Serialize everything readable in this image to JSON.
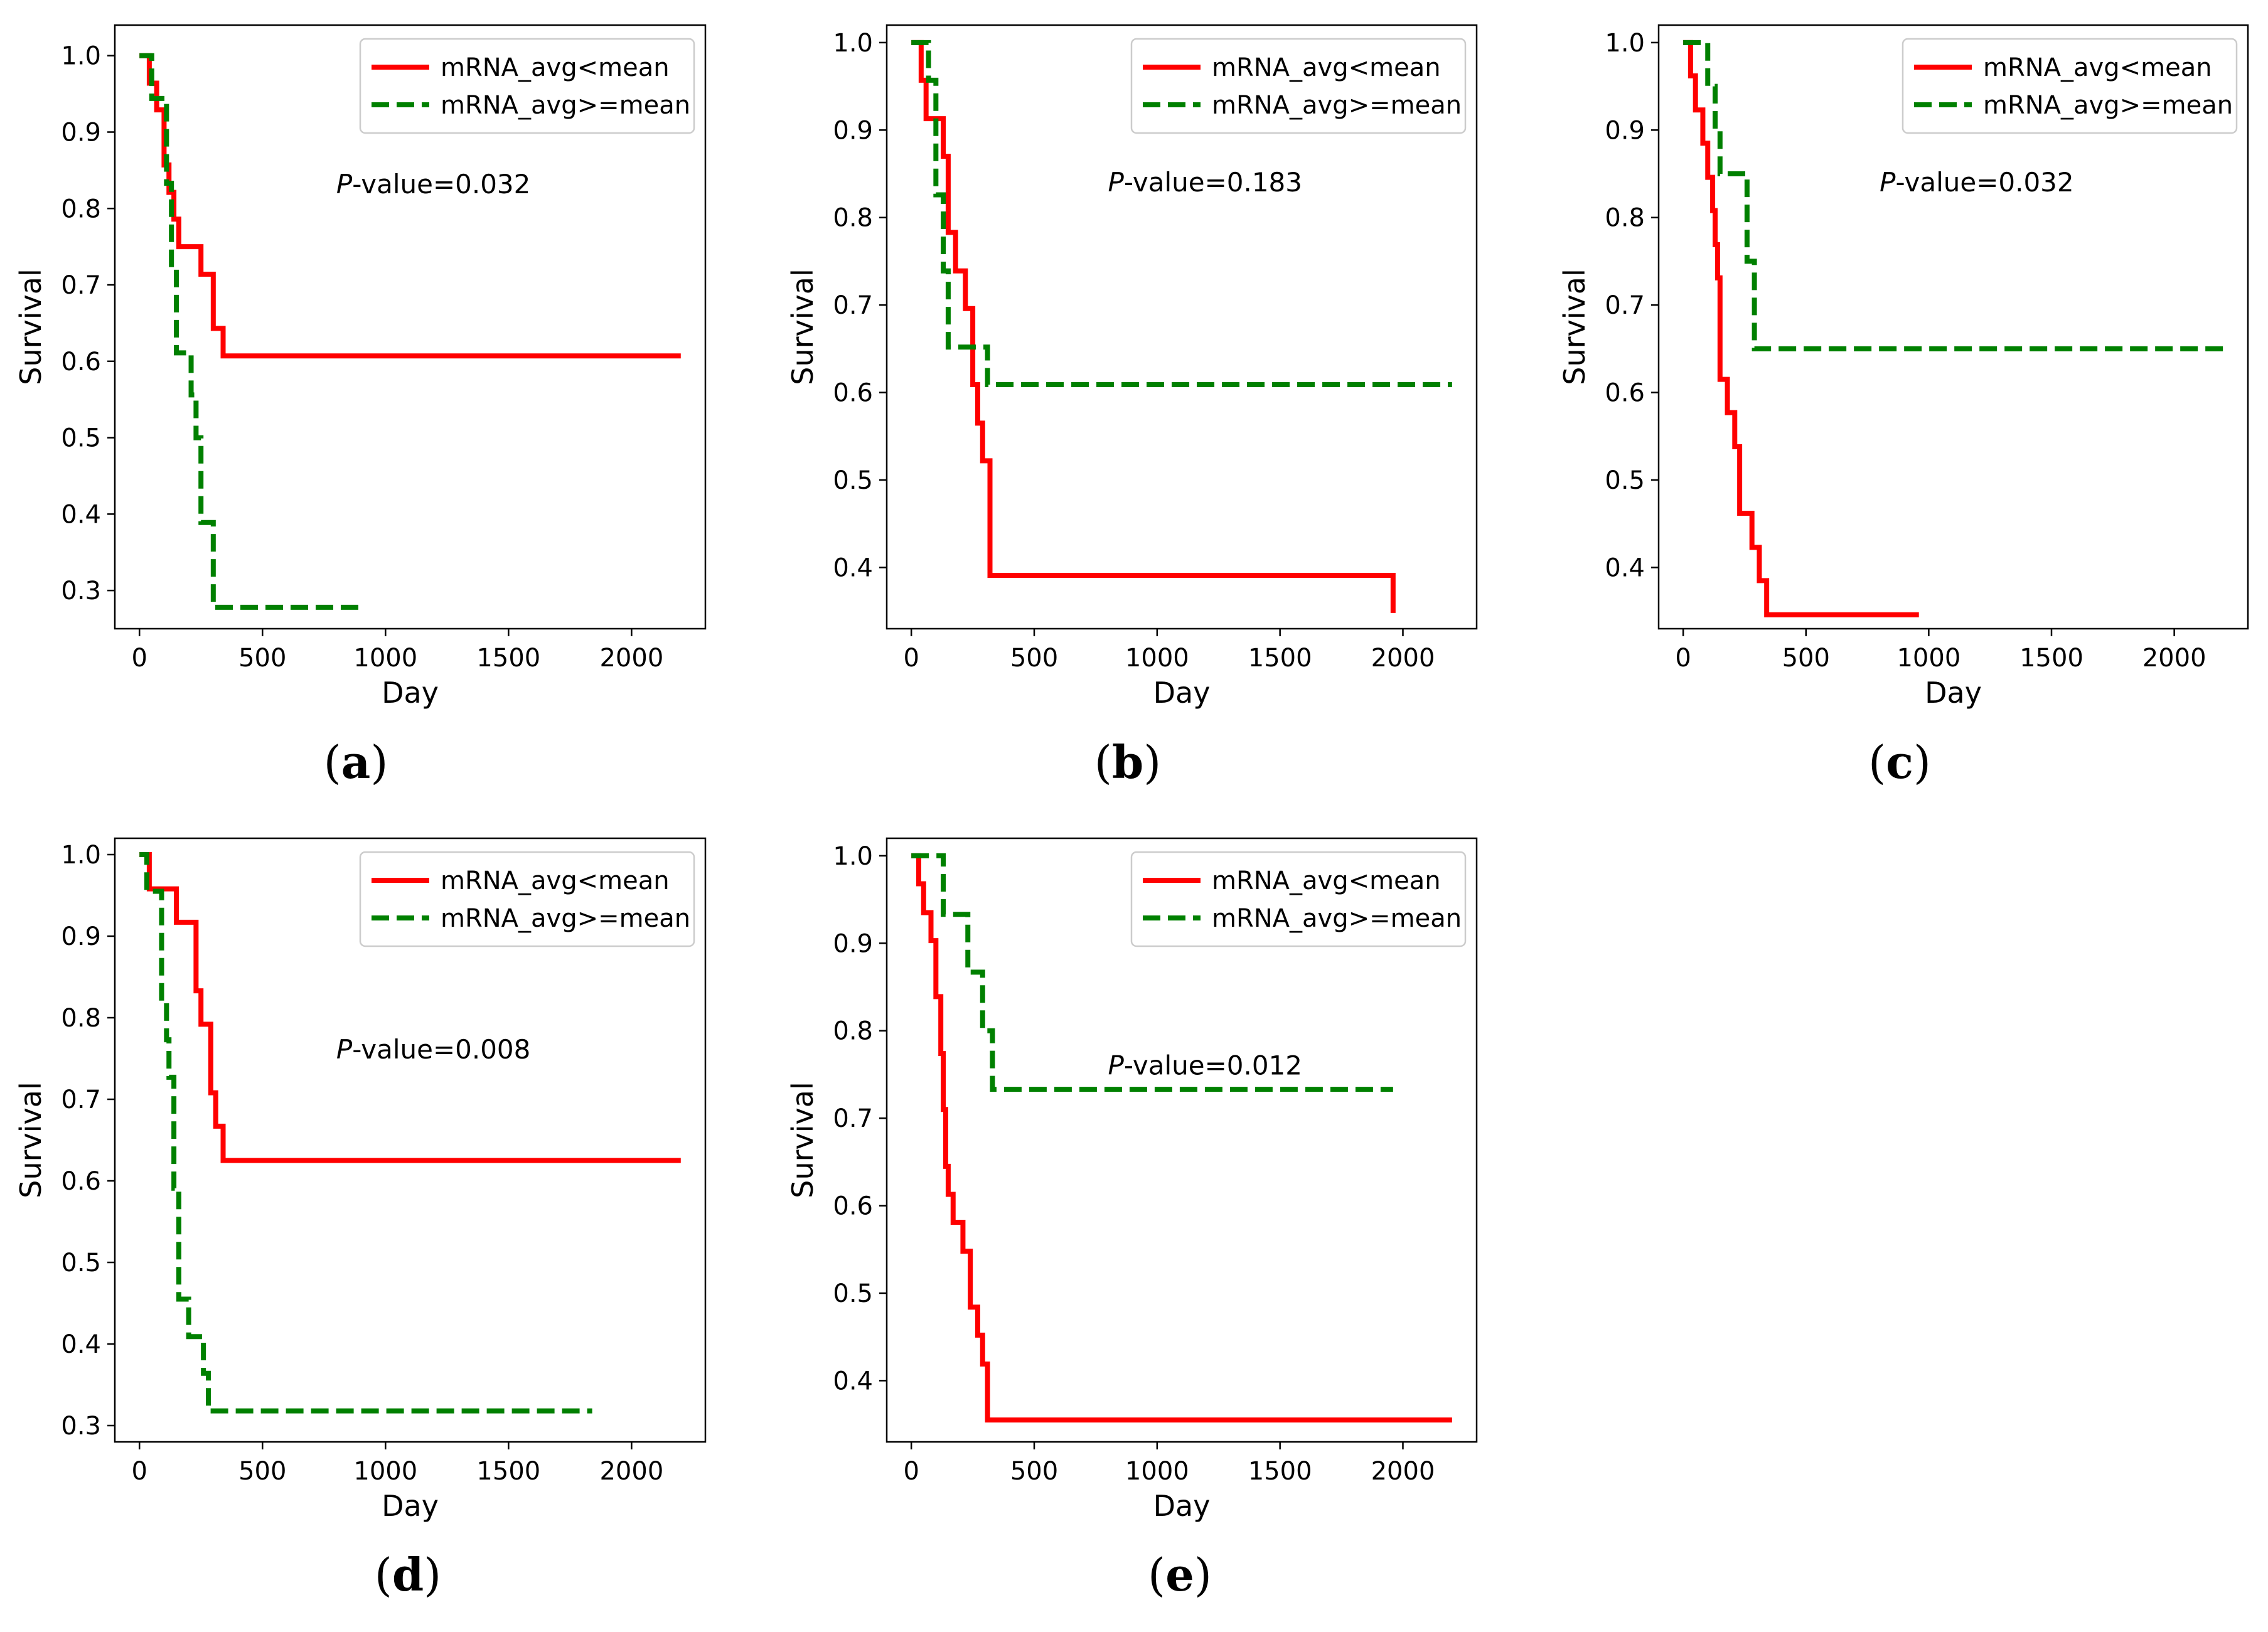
{
  "figure": {
    "colors": {
      "low": "#ff0000",
      "high": "#008000"
    },
    "legend": {
      "low": "mRNA_avg<mean",
      "high": "mRNA_avg>=mean"
    },
    "pvalue_prefix_italic": "P",
    "pvalue_prefix_rest": "-value="
  },
  "chart_data": [
    {
      "type": "line",
      "label": "(a)",
      "label_letter": "a",
      "xlabel": "Day",
      "ylabel": "Survival",
      "xlim": [
        -100,
        2300
      ],
      "ylim": [
        0.25,
        1.04
      ],
      "xticks": [
        0,
        500,
        1000,
        1500,
        2000
      ],
      "xtick_labels": [
        "0",
        "500",
        "1000",
        "1500",
        "2000"
      ],
      "yticks": [
        0.3,
        0.4,
        0.5,
        0.6,
        0.7,
        0.8,
        0.9,
        1.0
      ],
      "ytick_labels": [
        "0.3",
        "0.4",
        "0.5",
        "0.6",
        "0.7",
        "0.8",
        "0.9",
        "1.0"
      ],
      "legend_position": "top-right",
      "p_value": "0.032",
      "p_anchor": [
        800,
        0.82
      ],
      "series": [
        {
          "name": "mRNA_avg<mean",
          "style": "solid",
          "color": "#ff0000",
          "x": [
            0,
            40,
            70,
            100,
            120,
            140,
            160,
            250,
            300,
            340,
            2200
          ],
          "y": [
            1.0,
            0.964,
            0.929,
            0.857,
            0.821,
            0.786,
            0.75,
            0.714,
            0.643,
            0.607,
            0.607
          ]
        },
        {
          "name": "mRNA_avg>=mean",
          "style": "dashed",
          "color": "#008000",
          "x": [
            0,
            50,
            80,
            110,
            130,
            150,
            180,
            210,
            230,
            250,
            280,
            300,
            920
          ],
          "y": [
            1.0,
            0.944,
            0.944,
            0.833,
            0.722,
            0.611,
            0.611,
            0.556,
            0.5,
            0.389,
            0.389,
            0.278,
            0.278
          ]
        }
      ]
    },
    {
      "type": "line",
      "label": "(b)",
      "label_letter": "b",
      "xlabel": "Day",
      "ylabel": "Survival",
      "xlim": [
        -100,
        2300
      ],
      "ylim": [
        0.33,
        1.02
      ],
      "xticks": [
        0,
        500,
        1000,
        1500,
        2000
      ],
      "xtick_labels": [
        "0",
        "500",
        "1000",
        "1500",
        "2000"
      ],
      "yticks": [
        0.4,
        0.5,
        0.6,
        0.7,
        0.8,
        0.9,
        1.0
      ],
      "ytick_labels": [
        "0.4",
        "0.5",
        "0.6",
        "0.7",
        "0.8",
        "0.9",
        "1.0"
      ],
      "legend_position": "top-right",
      "p_value": "0.183",
      "p_anchor": [
        800,
        0.83
      ],
      "series": [
        {
          "name": "mRNA_avg<mean",
          "style": "solid",
          "color": "#ff0000",
          "x": [
            0,
            40,
            60,
            130,
            150,
            180,
            220,
            250,
            270,
            290,
            320,
            1960
          ],
          "y": [
            1.0,
            0.957,
            0.913,
            0.87,
            0.783,
            0.739,
            0.696,
            0.609,
            0.565,
            0.522,
            0.391,
            0.348
          ]
        },
        {
          "name": "mRNA_avg>=mean",
          "style": "dashed",
          "color": "#008000",
          "x": [
            0,
            70,
            100,
            130,
            150,
            280,
            310,
            2200
          ],
          "y": [
            1.0,
            0.957,
            0.826,
            0.739,
            0.652,
            0.652,
            0.609,
            0.609
          ]
        }
      ]
    },
    {
      "type": "line",
      "label": "(c)",
      "label_letter": "c",
      "xlabel": "Day",
      "ylabel": "Survival",
      "xlim": [
        -100,
        2300
      ],
      "ylim": [
        0.33,
        1.02
      ],
      "xticks": [
        0,
        500,
        1000,
        1500,
        2000
      ],
      "xtick_labels": [
        "0",
        "500",
        "1000",
        "1500",
        "2000"
      ],
      "yticks": [
        0.4,
        0.5,
        0.6,
        0.7,
        0.8,
        0.9,
        1.0
      ],
      "ytick_labels": [
        "0.4",
        "0.5",
        "0.6",
        "0.7",
        "0.8",
        "0.9",
        "1.0"
      ],
      "legend_position": "top-right",
      "p_value": "0.032",
      "p_anchor": [
        800,
        0.83
      ],
      "series": [
        {
          "name": "mRNA_avg<mean",
          "style": "solid",
          "color": "#ff0000",
          "x": [
            0,
            30,
            50,
            80,
            100,
            120,
            130,
            140,
            150,
            180,
            210,
            230,
            280,
            310,
            340,
            960
          ],
          "y": [
            1.0,
            0.962,
            0.923,
            0.885,
            0.846,
            0.808,
            0.769,
            0.731,
            0.615,
            0.577,
            0.538,
            0.462,
            0.423,
            0.385,
            0.346,
            0.346
          ]
        },
        {
          "name": "mRNA_avg>=mean",
          "style": "dashed",
          "color": "#008000",
          "x": [
            0,
            100,
            130,
            150,
            260,
            290,
            2200
          ],
          "y": [
            1.0,
            0.95,
            0.9,
            0.85,
            0.75,
            0.65,
            0.65
          ]
        }
      ]
    },
    {
      "type": "line",
      "label": "(d)",
      "label_letter": "d",
      "xlabel": "Day",
      "ylabel": "Survival",
      "xlim": [
        -100,
        2300
      ],
      "ylim": [
        0.28,
        1.02
      ],
      "xticks": [
        0,
        500,
        1000,
        1500,
        2000
      ],
      "xtick_labels": [
        "0",
        "500",
        "1000",
        "1500",
        "2000"
      ],
      "yticks": [
        0.3,
        0.4,
        0.5,
        0.6,
        0.7,
        0.8,
        0.9,
        1.0
      ],
      "ytick_labels": [
        "0.3",
        "0.4",
        "0.5",
        "0.6",
        "0.7",
        "0.8",
        "0.9",
        "1.0"
      ],
      "legend_position": "top-right",
      "p_value": "0.008",
      "p_anchor": [
        800,
        0.75
      ],
      "series": [
        {
          "name": "mRNA_avg<mean",
          "style": "solid",
          "color": "#ff0000",
          "x": [
            0,
            40,
            150,
            230,
            250,
            290,
            310,
            340,
            2200
          ],
          "y": [
            1.0,
            0.958,
            0.917,
            0.833,
            0.792,
            0.708,
            0.667,
            0.625,
            0.625
          ]
        },
        {
          "name": "mRNA_avg>=mean",
          "style": "dashed",
          "color": "#008000",
          "x": [
            0,
            30,
            50,
            90,
            110,
            120,
            140,
            160,
            200,
            260,
            280,
            1840
          ],
          "y": [
            1.0,
            0.955,
            0.955,
            0.818,
            0.773,
            0.727,
            0.591,
            0.455,
            0.409,
            0.364,
            0.318,
            0.318
          ]
        }
      ]
    },
    {
      "type": "line",
      "label": "(e)",
      "label_letter": "e",
      "xlabel": "Day",
      "ylabel": "Survival",
      "xlim": [
        -100,
        2300
      ],
      "ylim": [
        0.33,
        1.02
      ],
      "xticks": [
        0,
        500,
        1000,
        1500,
        2000
      ],
      "xtick_labels": [
        "0",
        "500",
        "1000",
        "1500",
        "2000"
      ],
      "yticks": [
        0.4,
        0.5,
        0.6,
        0.7,
        0.8,
        0.9,
        1.0
      ],
      "ytick_labels": [
        "0.4",
        "0.5",
        "0.6",
        "0.7",
        "0.8",
        "0.9",
        "1.0"
      ],
      "legend_position": "top-right",
      "p_value": "0.012",
      "p_anchor": [
        800,
        0.75
      ],
      "series": [
        {
          "name": "mRNA_avg<mean",
          "style": "solid",
          "color": "#ff0000",
          "x": [
            0,
            30,
            50,
            80,
            100,
            120,
            130,
            140,
            150,
            170,
            210,
            240,
            270,
            290,
            310,
            2200
          ],
          "y": [
            1.0,
            0.968,
            0.935,
            0.903,
            0.839,
            0.774,
            0.71,
            0.645,
            0.613,
            0.581,
            0.548,
            0.484,
            0.452,
            0.419,
            0.355,
            0.355
          ]
        },
        {
          "name": "mRNA_avg>=mean",
          "style": "dashed",
          "color": "#008000",
          "x": [
            0,
            130,
            230,
            290,
            330,
            1960
          ],
          "y": [
            1.0,
            0.933,
            0.867,
            0.8,
            0.733,
            0.733
          ]
        }
      ]
    }
  ]
}
